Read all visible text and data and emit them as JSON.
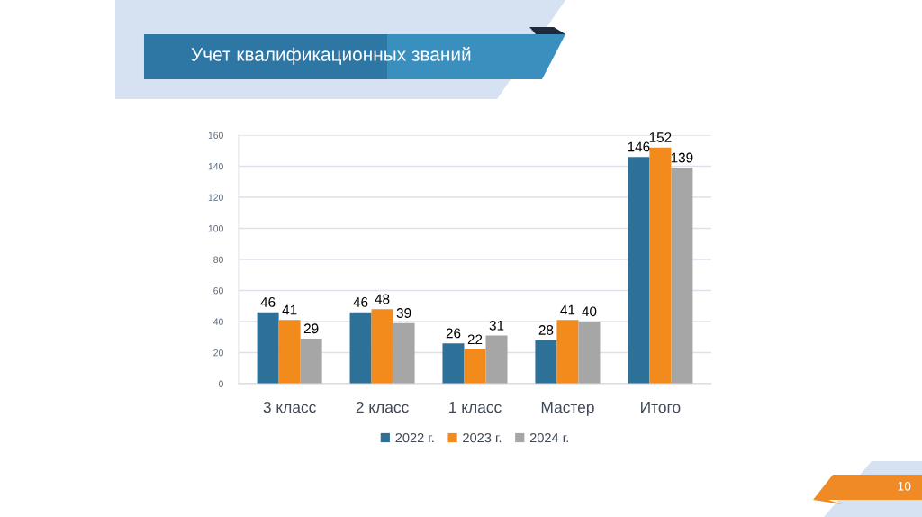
{
  "chart_data": {
    "type": "bar",
    "title": "Учет квалификационных званий",
    "categories": [
      "3 класс",
      "2 класс",
      "1 класс",
      "Мастер",
      "Итого"
    ],
    "series": [
      {
        "name": "2022 г.",
        "color": "#2e7198",
        "values": [
          46,
          46,
          26,
          28,
          146
        ]
      },
      {
        "name": "2023 г.",
        "color": "#f28a1c",
        "values": [
          41,
          48,
          22,
          41,
          152
        ]
      },
      {
        "name": "2024 г.",
        "color": "#a6a6a6",
        "values": [
          29,
          39,
          31,
          40,
          139
        ]
      }
    ],
    "ylim": [
      0,
      160
    ],
    "yticks": [
      0,
      20,
      40,
      60,
      80,
      100,
      120,
      140,
      160
    ],
    "grid": "y",
    "legend": "bottom",
    "data_labels": true,
    "annotations": [
      "10"
    ]
  }
}
